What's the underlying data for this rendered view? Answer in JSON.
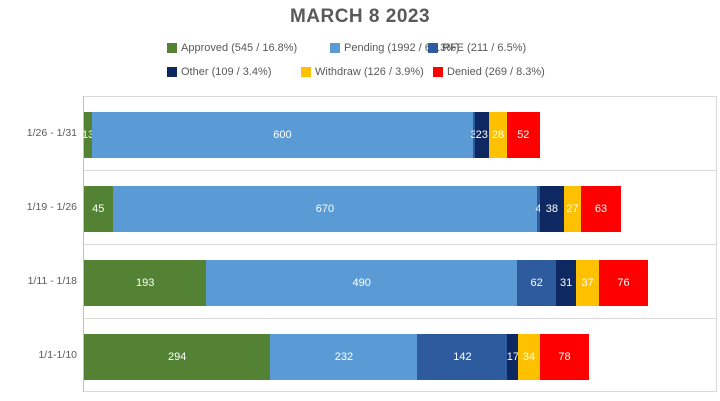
{
  "title": "MARCH 8 2023",
  "chart_data": {
    "type": "bar",
    "orientation": "horizontal-stacked",
    "title": "MARCH 8 2023",
    "categories": [
      "1/26 - 1/31",
      "1/19 - 1/26",
      "1/11 - 1/18",
      "1/1-1/10"
    ],
    "series": [
      {
        "name": "Approved",
        "legend_label": "Approved (545 / 16.8%)",
        "color": "#548235",
        "values": [
          13,
          45,
          193,
          294
        ]
      },
      {
        "name": "Pending",
        "legend_label": "Pending (1992 / 61.3%)",
        "color": "#5B9BD5",
        "values": [
          600,
          670,
          490,
          232
        ]
      },
      {
        "name": "RFE",
        "legend_label": "RFE (211 / 6.5%)",
        "color": "#2E5B9E",
        "values": [
          3,
          4,
          62,
          142
        ]
      },
      {
        "name": "Other",
        "legend_label": "Other (109 / 3.4%)",
        "color": "#0E2961",
        "values": [
          23,
          38,
          31,
          17
        ]
      },
      {
        "name": "Withdraw",
        "legend_label": "Withdraw (126 / 3.9%)",
        "color": "#FFC000",
        "values": [
          28,
          27,
          37,
          34
        ]
      },
      {
        "name": "Denied",
        "legend_label": "Denied (269 / 8.3%)",
        "color": "#FF0000",
        "values": [
          52,
          63,
          76,
          78
        ]
      }
    ],
    "xlim": [
      0,
      1000
    ],
    "ylabel": "",
    "xlabel": "",
    "legend_position": "top",
    "grid": "horizontal category separators only",
    "bar_value_labels": "white, centered inside each segment",
    "colors": {
      "title_text": "#595959",
      "axis_text": "#595959",
      "plot_border": "#D9D9D9",
      "axis_line": "#BFBFBF"
    }
  }
}
